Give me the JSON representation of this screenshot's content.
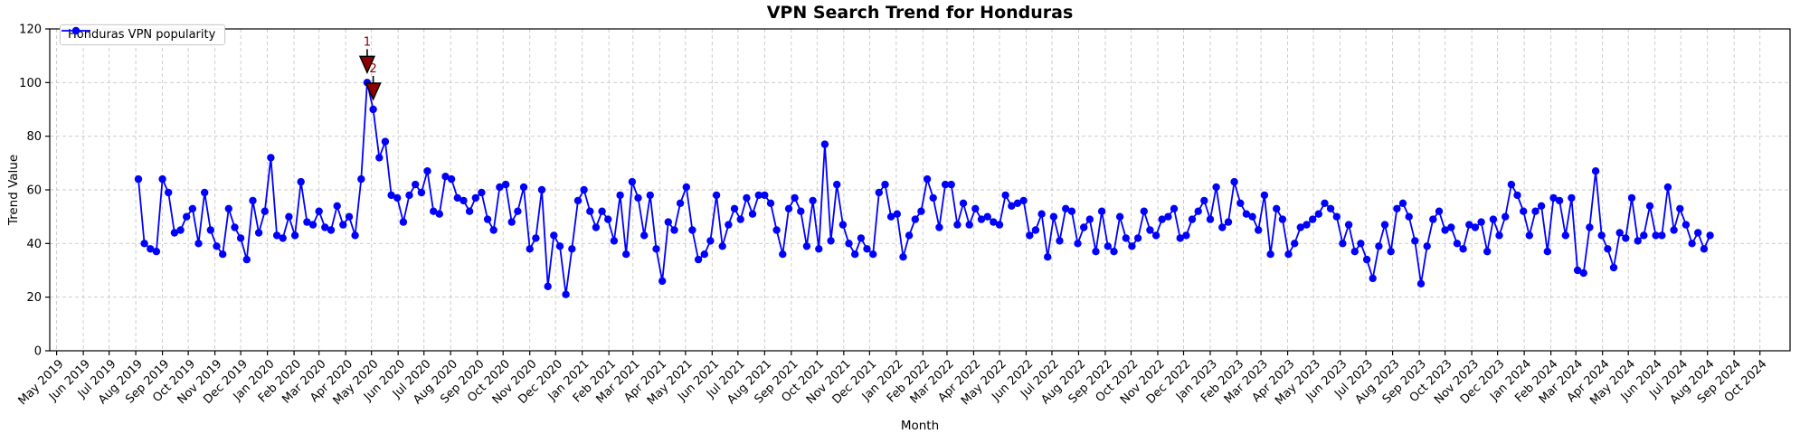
{
  "title": "VPN Search Trend for Honduras",
  "axes": {
    "xlabel": "Month",
    "ylabel": "Trend Value",
    "ylim": [
      0,
      120
    ],
    "yticks": [
      0,
      20,
      40,
      60,
      80,
      100,
      120
    ],
    "xlim_dates": [
      "2019-04-23",
      "2024-11-05"
    ],
    "xtick_labels": [
      "May 2019",
      "Jun 2019",
      "Jul 2019",
      "Aug 2019",
      "Sep 2019",
      "Oct 2019",
      "Nov 2019",
      "Dec 2019",
      "Jan 2020",
      "Feb 2020",
      "Mar 2020",
      "Apr 2020",
      "May 2020",
      "Jun 2020",
      "Jul 2020",
      "Aug 2020",
      "Sep 2020",
      "Oct 2020",
      "Nov 2020",
      "Dec 2020",
      "Jan 2021",
      "Feb 2021",
      "Mar 2021",
      "Apr 2021",
      "May 2021",
      "Jun 2021",
      "Jul 2021",
      "Aug 2021",
      "Sep 2021",
      "Oct 2021",
      "Nov 2021",
      "Dec 2021",
      "Jan 2022",
      "Feb 2022",
      "Mar 2022",
      "Apr 2022",
      "May 2022",
      "Jun 2022",
      "Jul 2022",
      "Aug 2022",
      "Sep 2022",
      "Oct 2022",
      "Nov 2022",
      "Dec 2022",
      "Jan 2023",
      "Feb 2023",
      "Mar 2023",
      "Apr 2023",
      "May 2023",
      "Jun 2023",
      "Jul 2023",
      "Aug 2023",
      "Sep 2023",
      "Oct 2023",
      "Nov 2023",
      "Dec 2023",
      "Jan 2024",
      "Feb 2024",
      "Mar 2024",
      "Apr 2024",
      "May 2024",
      "Jun 2024",
      "Jul 2024",
      "Aug 2024",
      "Sep 2024",
      "Oct 2024"
    ]
  },
  "legend": {
    "label": "Honduras VPN popularity"
  },
  "colors": {
    "line": "#0000ff",
    "marker": "#0000ff",
    "annotation": "#8b0000",
    "annotation_edge": "#000000",
    "grid": "#c8c8c8",
    "axis": "#000000",
    "background": "#ffffff",
    "legend_border": "#cccccc"
  },
  "chart_data": {
    "type": "line",
    "title": "VPN Search Trend for Honduras",
    "xlabel": "Month",
    "ylabel": "Trend Value",
    "ylim": [
      0,
      120
    ],
    "grid": true,
    "legend_position": "upper left",
    "series": [
      {
        "name": "Honduras VPN popularity",
        "start_date": "2019-08-04",
        "interval_days": 7,
        "values": [
          64,
          40,
          38,
          37,
          64,
          59,
          44,
          45,
          50,
          53,
          40,
          59,
          45,
          39,
          36,
          53,
          46,
          42,
          34,
          56,
          44,
          52,
          72,
          43,
          42,
          50,
          43,
          63,
          48,
          47,
          52,
          46,
          45,
          54,
          47,
          50,
          43,
          64,
          100,
          90,
          72,
          78,
          58,
          57,
          48,
          58,
          62,
          59,
          67,
          52,
          51,
          65,
          64,
          57,
          56,
          52,
          57,
          59,
          49,
          45,
          61,
          62,
          48,
          52,
          61,
          38,
          42,
          60,
          24,
          43,
          39,
          21,
          38,
          56,
          60,
          52,
          46,
          52,
          49,
          41,
          58,
          36,
          63,
          57,
          43,
          58,
          38,
          26,
          48,
          45,
          55,
          61,
          45,
          34,
          36,
          41,
          58,
          39,
          47,
          53,
          49,
          57,
          51,
          58,
          58,
          55,
          45,
          36,
          53,
          57,
          52,
          39,
          56,
          38,
          77,
          41,
          62,
          47,
          40,
          36,
          42,
          38,
          36,
          59,
          62,
          50,
          51,
          35,
          43,
          49,
          52,
          64,
          57,
          46,
          62,
          62,
          47,
          55,
          47,
          53,
          49,
          50,
          48,
          47,
          58,
          54,
          55,
          56,
          43,
          45,
          51,
          35,
          50,
          41,
          53,
          52,
          40,
          46,
          49,
          37,
          52,
          39,
          37,
          50,
          42,
          39,
          42,
          52,
          45,
          43,
          49,
          50,
          53,
          42,
          43,
          49,
          52,
          56,
          49,
          61,
          46,
          48,
          63,
          55,
          51,
          50,
          45,
          58,
          36,
          53,
          49,
          36,
          40,
          46,
          47,
          49,
          51,
          55,
          53,
          50,
          40,
          47,
          37,
          40,
          34,
          27,
          39,
          47,
          37,
          53,
          55,
          50,
          41,
          25,
          39,
          49,
          52,
          45,
          46,
          40,
          38,
          47,
          46,
          48,
          37,
          49,
          43,
          50,
          62,
          58,
          52,
          43,
          52,
          54,
          37,
          57,
          56,
          43,
          57,
          30,
          29,
          46,
          67,
          43,
          38,
          31,
          44,
          42,
          57,
          41,
          43,
          54,
          43,
          43,
          61,
          45,
          53,
          47,
          40,
          44,
          38,
          43
        ]
      }
    ],
    "annotations": [
      {
        "label": "1",
        "point_index": 38,
        "value": 100
      },
      {
        "label": "2",
        "point_index": 39,
        "value": 90
      }
    ]
  }
}
